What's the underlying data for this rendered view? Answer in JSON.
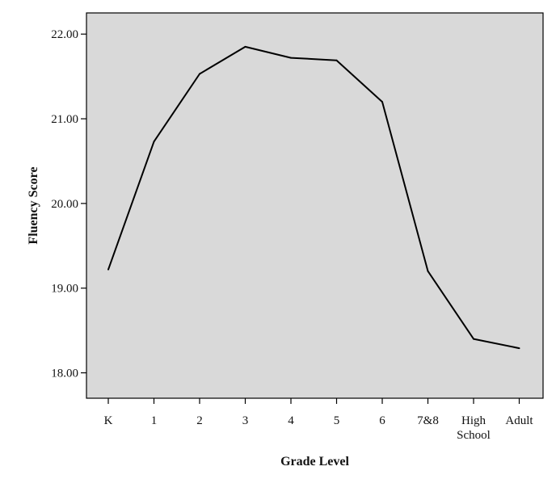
{
  "chart_data": {
    "type": "line",
    "title": "",
    "xlabel": "Grade Level",
    "ylabel": "Fluency Score",
    "categories": [
      "K",
      "1",
      "2",
      "3",
      "4",
      "5",
      "6",
      "7&8",
      "High School",
      "Adult"
    ],
    "category_lines": [
      [
        "K"
      ],
      [
        "1"
      ],
      [
        "2"
      ],
      [
        "3"
      ],
      [
        "4"
      ],
      [
        "5"
      ],
      [
        "6"
      ],
      [
        "7&8"
      ],
      [
        "High",
        "School"
      ],
      [
        "Adult"
      ]
    ],
    "series": [
      {
        "values": [
          19.22,
          20.73,
          21.53,
          21.85,
          21.72,
          21.69,
          21.2,
          19.2,
          18.4,
          18.29
        ]
      }
    ],
    "ylim": [
      17.7,
      22.25
    ],
    "yticks": [
      18.0,
      19.0,
      20.0,
      21.0,
      22.0
    ],
    "ytick_labels": [
      "18.00",
      "19.00",
      "20.00",
      "21.00",
      "22.00"
    ],
    "grid": false,
    "colors": {
      "plot_background": "#d9d9d9",
      "line": "#000000",
      "axes": "#000000"
    }
  }
}
